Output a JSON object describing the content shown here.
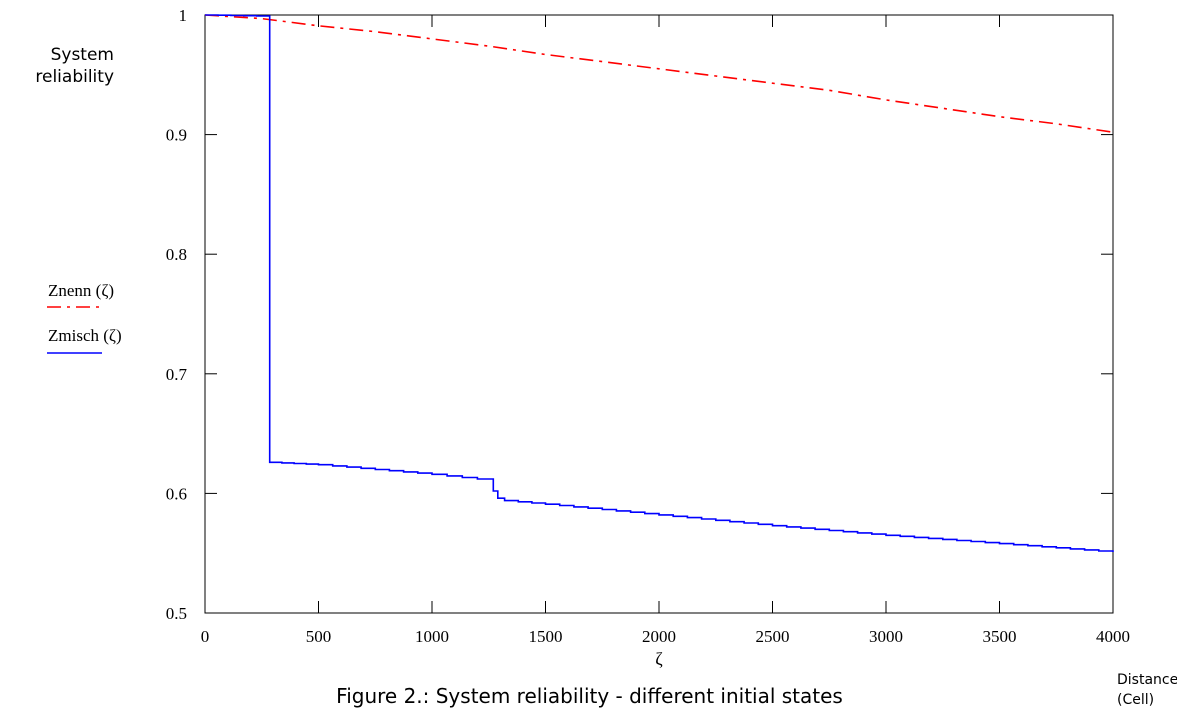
{
  "chart_data": {
    "type": "line",
    "title": "",
    "caption": "Figure 2.: System reliability - different initial states",
    "ylabel_lines": [
      "System",
      "reliability"
    ],
    "xlabel": "ζ",
    "xunit_lines": [
      "Distance",
      "(Cell)"
    ],
    "xlim": [
      0,
      4000
    ],
    "ylim": [
      0.5,
      1
    ],
    "xticks": [
      0,
      500,
      1000,
      1500,
      2000,
      2500,
      3000,
      3500,
      4000
    ],
    "yticks": [
      0.5,
      0.6,
      0.7,
      0.8,
      0.9,
      1
    ],
    "ytick_labels": [
      "0.5",
      "0.6",
      "0.7",
      "0.8",
      "0.9",
      "1"
    ],
    "grid": false,
    "legend_position": "left",
    "series": [
      {
        "name": "Znenn  (ζ)",
        "color": "#ff0000",
        "style": "dash-dot",
        "x": [
          0,
          250,
          500,
          750,
          1000,
          1250,
          1500,
          1750,
          2000,
          2250,
          2500,
          2750,
          3000,
          3250,
          3500,
          3750,
          4000
        ],
        "y": [
          1.0,
          0.997,
          0.991,
          0.986,
          0.98,
          0.974,
          0.967,
          0.961,
          0.955,
          0.949,
          0.943,
          0.937,
          0.929,
          0.922,
          0.915,
          0.909,
          0.902
        ]
      },
      {
        "name": "Zmisch  (ζ)",
        "color": "#0000ff",
        "style": "solid-step",
        "x": [
          0,
          285,
          285,
          500,
          750,
          1000,
          1200,
          1270,
          1270,
          1290,
          1290,
          1320,
          1320,
          1500,
          2000,
          2500,
          3000,
          3500,
          4000
        ],
        "y": [
          1.0,
          0.999,
          0.626,
          0.624,
          0.62,
          0.616,
          0.612,
          0.612,
          0.602,
          0.602,
          0.596,
          0.596,
          0.594,
          0.591,
          0.582,
          0.573,
          0.565,
          0.558,
          0.551
        ]
      }
    ]
  }
}
